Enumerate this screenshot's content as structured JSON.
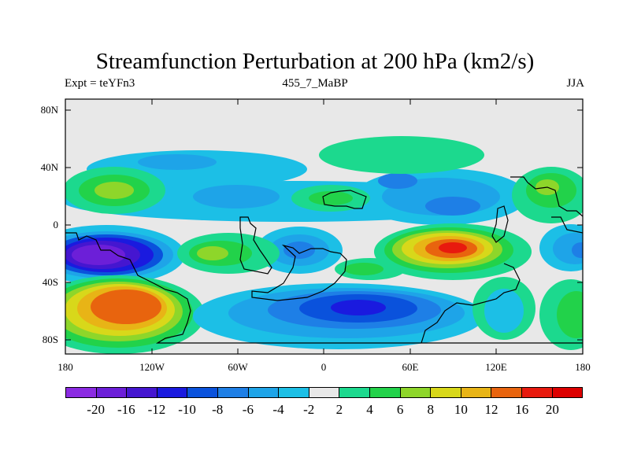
{
  "title": "Streamfunction Perturbation at 200 hPa (km2/s)",
  "subtitle_left": "Expt = teYFn3",
  "subtitle_center": "455_7_MaBP",
  "subtitle_right": "JJA",
  "y_axis_labels": [
    "80N",
    "40N",
    "0",
    "40S",
    "80S"
  ],
  "x_axis_labels": [
    "180",
    "120W",
    "60W",
    "0",
    "60E",
    "120E",
    "180"
  ],
  "colorbar": {
    "labels": [
      "-20",
      "-16",
      "-12",
      "-10",
      "-8",
      "-6",
      "-4",
      "-2",
      "2",
      "4",
      "6",
      "8",
      "10",
      "12",
      "16",
      "20"
    ],
    "colors": [
      "#8b2be2",
      "#6c1fd8",
      "#4516d0",
      "#1a1adf",
      "#0a52dc",
      "#1e7fe6",
      "#1ea4e8",
      "#1cbfe6",
      "#e8e8e8",
      "#1cd98e",
      "#22d24a",
      "#8ed62a",
      "#d8d81a",
      "#e8b416",
      "#e8640e",
      "#e81a0e",
      "#dd0000"
    ]
  },
  "background_color": "#e8e8e8"
}
